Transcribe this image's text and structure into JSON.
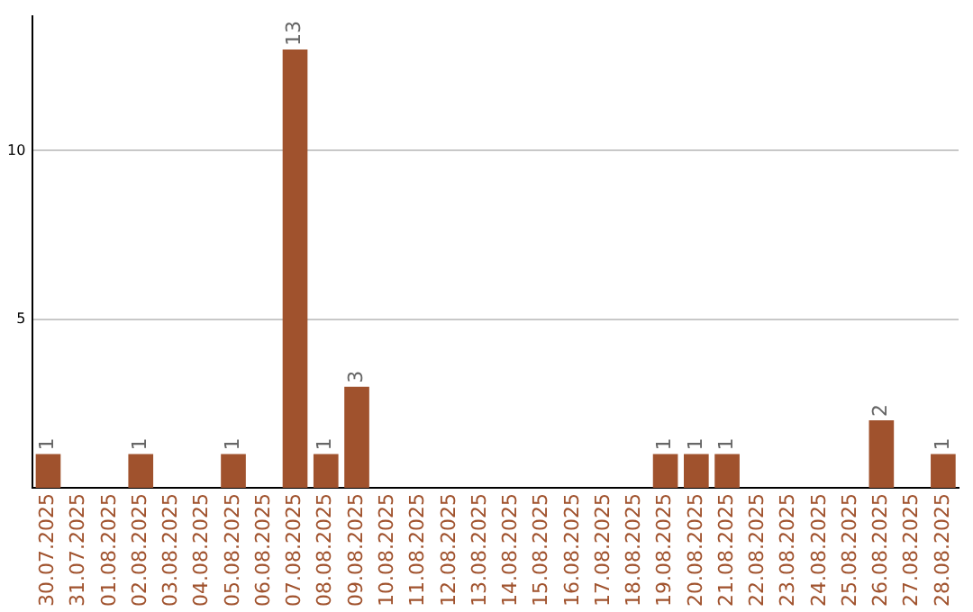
{
  "chart_data": {
    "type": "bar",
    "categories": [
      "30.07.2025",
      "31.07.2025",
      "01.08.2025",
      "02.08.2025",
      "03.08.2025",
      "04.08.2025",
      "05.08.2025",
      "06.08.2025",
      "07.08.2025",
      "08.08.2025",
      "09.08.2025",
      "10.08.2025",
      "11.08.2025",
      "12.08.2025",
      "13.08.2025",
      "14.08.2025",
      "15.08.2025",
      "16.08.2025",
      "17.08.2025",
      "18.08.2025",
      "19.08.2025",
      "20.08.2025",
      "21.08.2025",
      "22.08.2025",
      "23.08.2025",
      "24.08.2025",
      "25.08.2025",
      "26.08.2025",
      "27.08.2025",
      "28.08.2025"
    ],
    "values": [
      1,
      0,
      0,
      1,
      0,
      0,
      1,
      0,
      13,
      1,
      3,
      0,
      0,
      0,
      0,
      0,
      0,
      0,
      0,
      0,
      1,
      1,
      1,
      0,
      0,
      0,
      0,
      2,
      0,
      1
    ],
    "value_labels": [
      "1",
      null,
      null,
      "1",
      null,
      null,
      "1",
      null,
      "13",
      "1",
      "3",
      null,
      null,
      null,
      null,
      null,
      null,
      null,
      null,
      null,
      "1",
      "1",
      "1",
      null,
      null,
      null,
      null,
      "2",
      null,
      "1"
    ],
    "color": "#a0522d",
    "ylim": [
      0,
      14
    ],
    "yticks": [
      5,
      10
    ],
    "grid": "y",
    "legend": false
  }
}
